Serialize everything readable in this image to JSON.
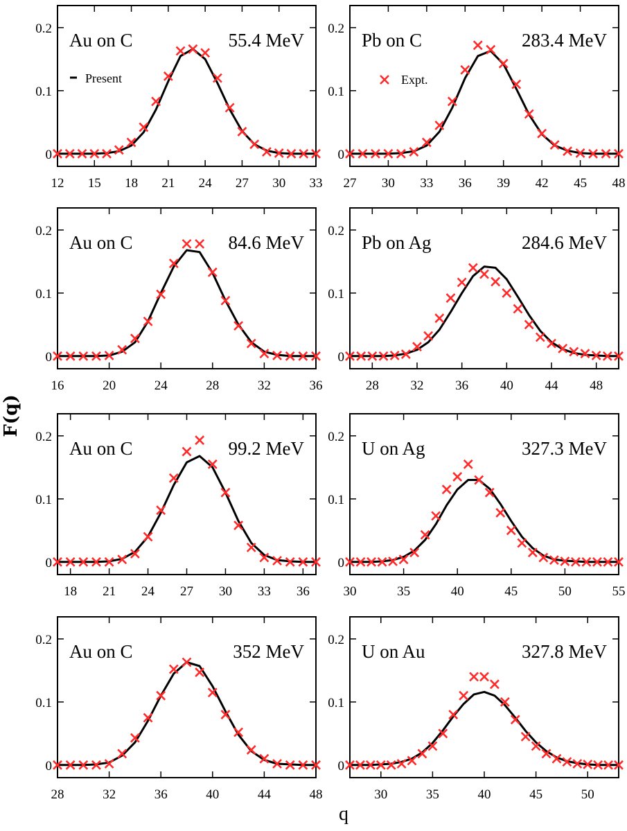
{
  "figure": {
    "ylabel": "F(q)",
    "xlabel": "q",
    "legend": {
      "present_label": "Present",
      "expt_label": "Expt."
    },
    "colors": {
      "curve": "#000000",
      "markers": "#ff2a2a",
      "frame": "#000000",
      "background": "#ffffff"
    }
  },
  "chart_data": [
    {
      "type": "scatter",
      "system": "Au on C",
      "energy": "55.4 MeV",
      "xlim": [
        12,
        33
      ],
      "ylim": [
        -0.02,
        0.235
      ],
      "xticks": [
        12,
        15,
        18,
        21,
        24,
        27,
        30,
        33
      ],
      "yticks": [
        0,
        0.1,
        0.2
      ],
      "legend": "present",
      "series": [
        {
          "kind": "curve",
          "x": [
            12,
            13,
            14,
            15,
            16,
            17,
            18,
            19,
            20,
            21,
            22,
            23,
            24,
            25,
            26,
            27,
            28,
            29,
            30,
            31,
            32,
            33
          ],
          "y": [
            0,
            0,
            0,
            0,
            0.001,
            0.004,
            0.013,
            0.034,
            0.07,
            0.115,
            0.155,
            0.166,
            0.15,
            0.112,
            0.07,
            0.036,
            0.015,
            0.005,
            0.001,
            0,
            0,
            0
          ]
        },
        {
          "kind": "points",
          "x": [
            12,
            13,
            14,
            15,
            16,
            17,
            18,
            19,
            20,
            21,
            22,
            23,
            24,
            25,
            26,
            27,
            28,
            29,
            30,
            31,
            32,
            33
          ],
          "y": [
            0,
            0,
            0,
            0,
            0,
            0.006,
            0.018,
            0.042,
            0.083,
            0.123,
            0.163,
            0.166,
            0.16,
            0.12,
            0.073,
            0.035,
            0.015,
            0.003,
            0.001,
            0,
            0,
            0
          ]
        }
      ]
    },
    {
      "type": "scatter",
      "system": "Pb on C",
      "energy": "283.4 MeV",
      "xlim": [
        27,
        48
      ],
      "ylim": [
        -0.02,
        0.235
      ],
      "xticks": [
        27,
        30,
        33,
        36,
        39,
        42,
        45,
        48
      ],
      "yticks": [
        0,
        0.1,
        0.2
      ],
      "legend": "expt",
      "series": [
        {
          "kind": "curve",
          "x": [
            27,
            28,
            29,
            30,
            31,
            32,
            33,
            34,
            35,
            36,
            37,
            38,
            39,
            40,
            41,
            42,
            43,
            44,
            45,
            46,
            47,
            48
          ],
          "y": [
            0,
            0,
            0,
            0,
            0.001,
            0.004,
            0.013,
            0.035,
            0.073,
            0.12,
            0.155,
            0.163,
            0.142,
            0.103,
            0.062,
            0.031,
            0.013,
            0.005,
            0.001,
            0,
            0,
            0
          ]
        },
        {
          "kind": "points",
          "x": [
            27,
            28,
            29,
            30,
            31,
            32,
            33,
            34,
            35,
            36,
            37,
            38,
            39,
            40,
            41,
            42,
            43,
            44,
            45,
            46,
            47,
            48
          ],
          "y": [
            0,
            0,
            0,
            0,
            0,
            0.003,
            0.018,
            0.045,
            0.083,
            0.133,
            0.172,
            0.165,
            0.143,
            0.11,
            0.063,
            0.032,
            0.014,
            0.004,
            0.001,
            0,
            0,
            0
          ]
        }
      ]
    },
    {
      "type": "scatter",
      "system": "Au on C",
      "energy": "84.6 MeV",
      "xlim": [
        16,
        36
      ],
      "ylim": [
        -0.02,
        0.235
      ],
      "xticks": [
        16,
        20,
        24,
        28,
        32,
        36
      ],
      "yticks": [
        0,
        0.1,
        0.2
      ],
      "legend": "",
      "series": [
        {
          "kind": "curve",
          "x": [
            16,
            17,
            18,
            19,
            20,
            21,
            22,
            23,
            24,
            25,
            26,
            27,
            28,
            29,
            30,
            31,
            32,
            33,
            34,
            35,
            36
          ],
          "y": [
            0,
            0,
            0,
            0,
            0.001,
            0.007,
            0.022,
            0.055,
            0.1,
            0.142,
            0.168,
            0.165,
            0.132,
            0.088,
            0.05,
            0.022,
            0.007,
            0.002,
            0,
            0,
            0
          ]
        },
        {
          "kind": "points",
          "x": [
            16,
            17,
            18,
            19,
            20,
            21,
            22,
            23,
            24,
            25,
            26,
            27,
            28,
            29,
            30,
            31,
            32,
            33,
            34,
            35,
            36
          ],
          "y": [
            0,
            0,
            0,
            0,
            0.001,
            0.01,
            0.028,
            0.055,
            0.098,
            0.147,
            0.178,
            0.178,
            0.133,
            0.088,
            0.048,
            0.02,
            0.004,
            0.001,
            0,
            0,
            0
          ]
        }
      ]
    },
    {
      "type": "scatter",
      "system": "Pb on Ag",
      "energy": "284.6 MeV",
      "xlim": [
        26,
        50
      ],
      "ylim": [
        -0.02,
        0.235
      ],
      "xticks": [
        28,
        32,
        36,
        40,
        44,
        48
      ],
      "yticks": [
        0,
        0.1,
        0.2
      ],
      "legend": "",
      "series": [
        {
          "kind": "curve",
          "x": [
            26,
            27,
            28,
            29,
            30,
            31,
            32,
            33,
            34,
            35,
            36,
            37,
            38,
            39,
            40,
            41,
            42,
            43,
            44,
            45,
            46,
            47,
            48,
            49,
            50
          ],
          "y": [
            0,
            0,
            0,
            0,
            0.001,
            0.004,
            0.01,
            0.022,
            0.042,
            0.07,
            0.1,
            0.127,
            0.142,
            0.14,
            0.122,
            0.094,
            0.065,
            0.04,
            0.022,
            0.011,
            0.005,
            0.002,
            0.001,
            0,
            0
          ]
        },
        {
          "kind": "points",
          "x": [
            26,
            27,
            28,
            29,
            30,
            31,
            32,
            33,
            34,
            35,
            36,
            37,
            38,
            39,
            40,
            41,
            42,
            43,
            44,
            45,
            46,
            47,
            48,
            49,
            50
          ],
          "y": [
            0,
            0,
            0,
            0,
            0.001,
            0.003,
            0.015,
            0.032,
            0.06,
            0.092,
            0.117,
            0.14,
            0.13,
            0.118,
            0.1,
            0.075,
            0.05,
            0.03,
            0.02,
            0.012,
            0.007,
            0.004,
            0.001,
            0,
            0
          ]
        }
      ]
    },
    {
      "type": "scatter",
      "system": "Au on C",
      "energy": "99.2 MeV",
      "xlim": [
        17,
        37
      ],
      "ylim": [
        -0.02,
        0.235
      ],
      "xticks": [
        18,
        21,
        24,
        27,
        30,
        33,
        36
      ],
      "yticks": [
        0,
        0.1,
        0.2
      ],
      "legend": "",
      "series": [
        {
          "kind": "curve",
          "x": [
            17,
            18,
            19,
            20,
            21,
            22,
            23,
            24,
            25,
            26,
            27,
            28,
            29,
            30,
            31,
            32,
            33,
            34,
            35,
            36,
            37
          ],
          "y": [
            0,
            0,
            0,
            0,
            0.001,
            0.005,
            0.016,
            0.04,
            0.078,
            0.122,
            0.158,
            0.168,
            0.15,
            0.11,
            0.065,
            0.03,
            0.011,
            0.003,
            0.001,
            0,
            0
          ]
        },
        {
          "kind": "points",
          "x": [
            17,
            18,
            19,
            20,
            21,
            22,
            23,
            24,
            25,
            26,
            27,
            28,
            29,
            30,
            31,
            32,
            33,
            34,
            35,
            36,
            37
          ],
          "y": [
            0,
            0,
            0,
            0,
            0,
            0.004,
            0.013,
            0.04,
            0.082,
            0.133,
            0.175,
            0.193,
            0.155,
            0.11,
            0.058,
            0.023,
            0.007,
            0.002,
            0,
            0,
            0
          ]
        }
      ]
    },
    {
      "type": "scatter",
      "system": "U on Ag",
      "energy": "327.3 MeV",
      "xlim": [
        30,
        55
      ],
      "ylim": [
        -0.02,
        0.235
      ],
      "xticks": [
        30,
        35,
        40,
        45,
        50,
        55
      ],
      "yticks": [
        0,
        0.1,
        0.2
      ],
      "legend": "",
      "series": [
        {
          "kind": "curve",
          "x": [
            30,
            31,
            32,
            33,
            34,
            35,
            36,
            37,
            38,
            39,
            40,
            41,
            42,
            43,
            44,
            45,
            46,
            47,
            48,
            49,
            50,
            51,
            52,
            53,
            54,
            55
          ],
          "y": [
            0,
            0,
            0,
            0.001,
            0.003,
            0.008,
            0.018,
            0.035,
            0.06,
            0.09,
            0.115,
            0.13,
            0.13,
            0.116,
            0.092,
            0.065,
            0.04,
            0.022,
            0.01,
            0.004,
            0.002,
            0.001,
            0,
            0,
            0,
            0
          ]
        },
        {
          "kind": "points",
          "x": [
            30,
            31,
            32,
            33,
            34,
            35,
            36,
            37,
            38,
            39,
            40,
            41,
            42,
            43,
            44,
            45,
            46,
            47,
            48,
            49,
            50,
            51,
            52,
            53,
            54,
            55
          ],
          "y": [
            0,
            0,
            0,
            0,
            0.001,
            0.004,
            0.015,
            0.043,
            0.073,
            0.115,
            0.135,
            0.155,
            0.13,
            0.11,
            0.078,
            0.05,
            0.03,
            0.015,
            0.007,
            0.003,
            0.001,
            0,
            0,
            0,
            0,
            0
          ]
        }
      ]
    },
    {
      "type": "scatter",
      "system": "Au on C",
      "energy": "352 MeV",
      "xlim": [
        28,
        48
      ],
      "ylim": [
        -0.02,
        0.235
      ],
      "xticks": [
        28,
        32,
        36,
        40,
        44,
        48
      ],
      "yticks": [
        0,
        0.1,
        0.2
      ],
      "legend": "",
      "series": [
        {
          "kind": "curve",
          "x": [
            28,
            29,
            30,
            31,
            32,
            33,
            34,
            35,
            36,
            37,
            38,
            39,
            40,
            41,
            42,
            43,
            44,
            45,
            46,
            47,
            48
          ],
          "y": [
            0,
            0,
            0,
            0.001,
            0.004,
            0.015,
            0.036,
            0.07,
            0.11,
            0.145,
            0.163,
            0.157,
            0.125,
            0.085,
            0.048,
            0.022,
            0.008,
            0.002,
            0.001,
            0,
            0
          ]
        },
        {
          "kind": "points",
          "x": [
            28,
            29,
            30,
            31,
            32,
            33,
            34,
            35,
            36,
            37,
            38,
            39,
            40,
            41,
            42,
            43,
            44,
            45,
            46,
            47,
            48
          ],
          "y": [
            0,
            0,
            0,
            0,
            0.002,
            0.018,
            0.043,
            0.075,
            0.11,
            0.152,
            0.163,
            0.147,
            0.115,
            0.08,
            0.052,
            0.024,
            0.01,
            0.002,
            0,
            0,
            0
          ]
        }
      ]
    },
    {
      "type": "scatter",
      "system": "U on Au",
      "energy": "327.8 MeV",
      "xlim": [
        27,
        53
      ],
      "ylim": [
        -0.02,
        0.235
      ],
      "xticks": [
        30,
        35,
        40,
        45,
        50
      ],
      "yticks": [
        0,
        0.1,
        0.2
      ],
      "legend": "",
      "series": [
        {
          "kind": "curve",
          "x": [
            27,
            28,
            29,
            30,
            31,
            32,
            33,
            34,
            35,
            36,
            37,
            38,
            39,
            40,
            41,
            42,
            43,
            44,
            45,
            46,
            47,
            48,
            49,
            50,
            51,
            52,
            53
          ],
          "y": [
            0,
            0,
            0,
            0.001,
            0.002,
            0.005,
            0.01,
            0.02,
            0.035,
            0.055,
            0.077,
            0.097,
            0.112,
            0.116,
            0.11,
            0.095,
            0.075,
            0.054,
            0.036,
            0.022,
            0.012,
            0.006,
            0.003,
            0.001,
            0,
            0,
            0
          ]
        },
        {
          "kind": "points",
          "x": [
            27,
            28,
            29,
            30,
            31,
            32,
            33,
            34,
            35,
            36,
            37,
            38,
            39,
            40,
            41,
            42,
            43,
            44,
            45,
            46,
            47,
            48,
            49,
            50,
            51,
            52,
            53
          ],
          "y": [
            0,
            0,
            0,
            0,
            0,
            0.002,
            0.007,
            0.018,
            0.03,
            0.05,
            0.08,
            0.11,
            0.14,
            0.14,
            0.128,
            0.1,
            0.072,
            0.045,
            0.03,
            0.018,
            0.01,
            0.005,
            0.002,
            0.001,
            0,
            0,
            0
          ]
        }
      ]
    }
  ]
}
